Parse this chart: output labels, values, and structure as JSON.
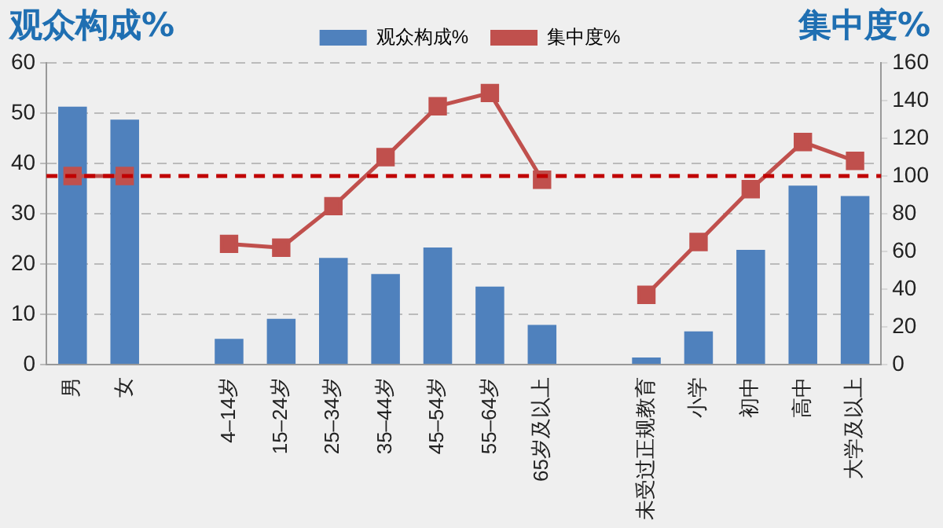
{
  "chart_data": {
    "type": "bar",
    "ylabel": "观众构成%",
    "y2label": "集中度%",
    "categories": [
      "男",
      "女",
      null,
      "4–14岁",
      "15–24岁",
      "25–34岁",
      "35–44岁",
      "45–54岁",
      "55–64岁",
      "65岁及以上",
      null,
      "未受过正规教育",
      "小学",
      "初中",
      "高中",
      "大学及以上"
    ],
    "series": [
      {
        "name": "观众构成%",
        "color": "#4f81bd",
        "values": [
          51.3,
          48.7,
          null,
          5.1,
          9.1,
          21.2,
          18.0,
          23.3,
          15.5,
          7.9,
          null,
          1.4,
          6.6,
          22.8,
          35.6,
          33.5
        ]
      },
      {
        "name": "集中度%",
        "type": "line",
        "axis": "y2",
        "color": "#c0504d",
        "marker": "square",
        "values": [
          100,
          100,
          null,
          64,
          62,
          84,
          110,
          137,
          144,
          98,
          null,
          37,
          65,
          93,
          118,
          108
        ]
      }
    ],
    "ylim": [
      0,
      60
    ],
    "yticks": [
      0,
      10,
      20,
      30,
      40,
      50,
      60
    ],
    "y2lim": [
      0,
      160
    ],
    "y2ticks": [
      0,
      20,
      40,
      60,
      80,
      100,
      120,
      140,
      160
    ],
    "ref_lines": [
      {
        "axis": "y2",
        "value": 100,
        "label": null,
        "color": "#c00000",
        "line_style": "dashed"
      }
    ],
    "grid": "y",
    "legend": "top"
  }
}
